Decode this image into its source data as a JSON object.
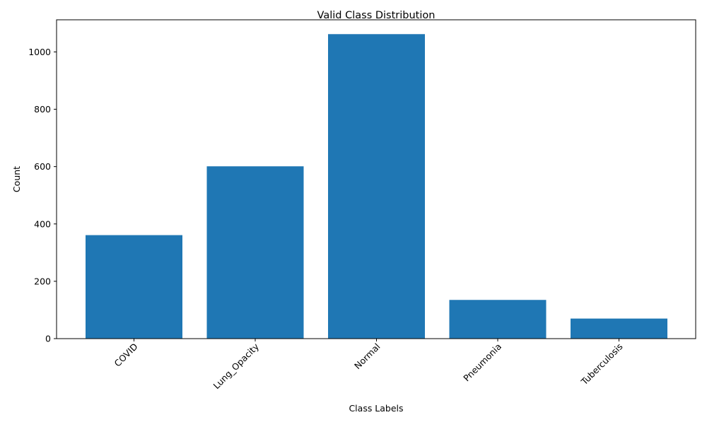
{
  "chart_data": {
    "type": "bar",
    "title": "Valid Class Distribution",
    "xlabel": "Class Labels",
    "ylabel": "Count",
    "categories": [
      "COVID",
      "Lung_Opacity",
      "Normal",
      "Pneumonia",
      "Tuberculosis"
    ],
    "values": [
      361,
      601,
      1062,
      135,
      70
    ],
    "ylim": [
      0,
      1112
    ],
    "yticks": [
      0,
      200,
      400,
      600,
      800,
      1000
    ],
    "grid": false,
    "xtick_rotation": 45,
    "bar_color": "#1f77b4"
  }
}
